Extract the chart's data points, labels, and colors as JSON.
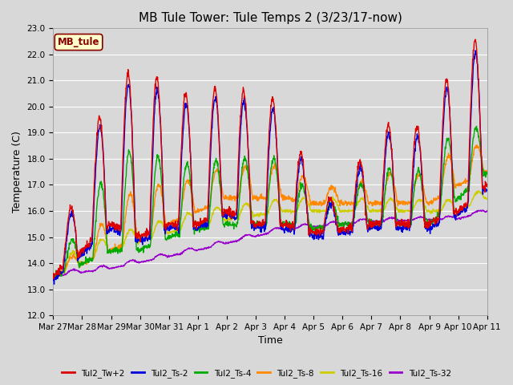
{
  "title": "MB Tule Tower: Tule Temps 2 (3/23/17-now)",
  "xlabel": "Time",
  "ylabel": "Temperature (C)",
  "ylim": [
    12.0,
    23.0
  ],
  "yticks": [
    12.0,
    13.0,
    14.0,
    15.0,
    16.0,
    17.0,
    18.0,
    19.0,
    20.0,
    21.0,
    22.0,
    23.0
  ],
  "background_color": "#d8d8d8",
  "plot_bg_color": "#d8d8d8",
  "grid_color": "#ffffff",
  "legend_label": "MB_tule",
  "legend_box_color": "#ffffcc",
  "legend_box_edge": "#880000",
  "series_colors": {
    "Tul2_Tw+2": "#dd0000",
    "Tul2_Ts-2": "#0000dd",
    "Tul2_Ts-4": "#00aa00",
    "Tul2_Ts-8": "#ff8800",
    "Tul2_Ts-16": "#cccc00",
    "Tul2_Ts-32": "#9900cc"
  },
  "x_tick_labels": [
    "Mar 27",
    "Mar 28",
    "Mar 29",
    "Mar 30",
    "Mar 31",
    "Apr 1",
    "Apr 2",
    "Apr 3",
    "Apr 4",
    "Apr 5",
    "Apr 6",
    "Apr 7",
    "Apr 8",
    "Apr 9",
    "Apr 10",
    "Apr 11"
  ],
  "title_fontsize": 11,
  "axis_label_fontsize": 9,
  "tick_fontsize": 7.5
}
